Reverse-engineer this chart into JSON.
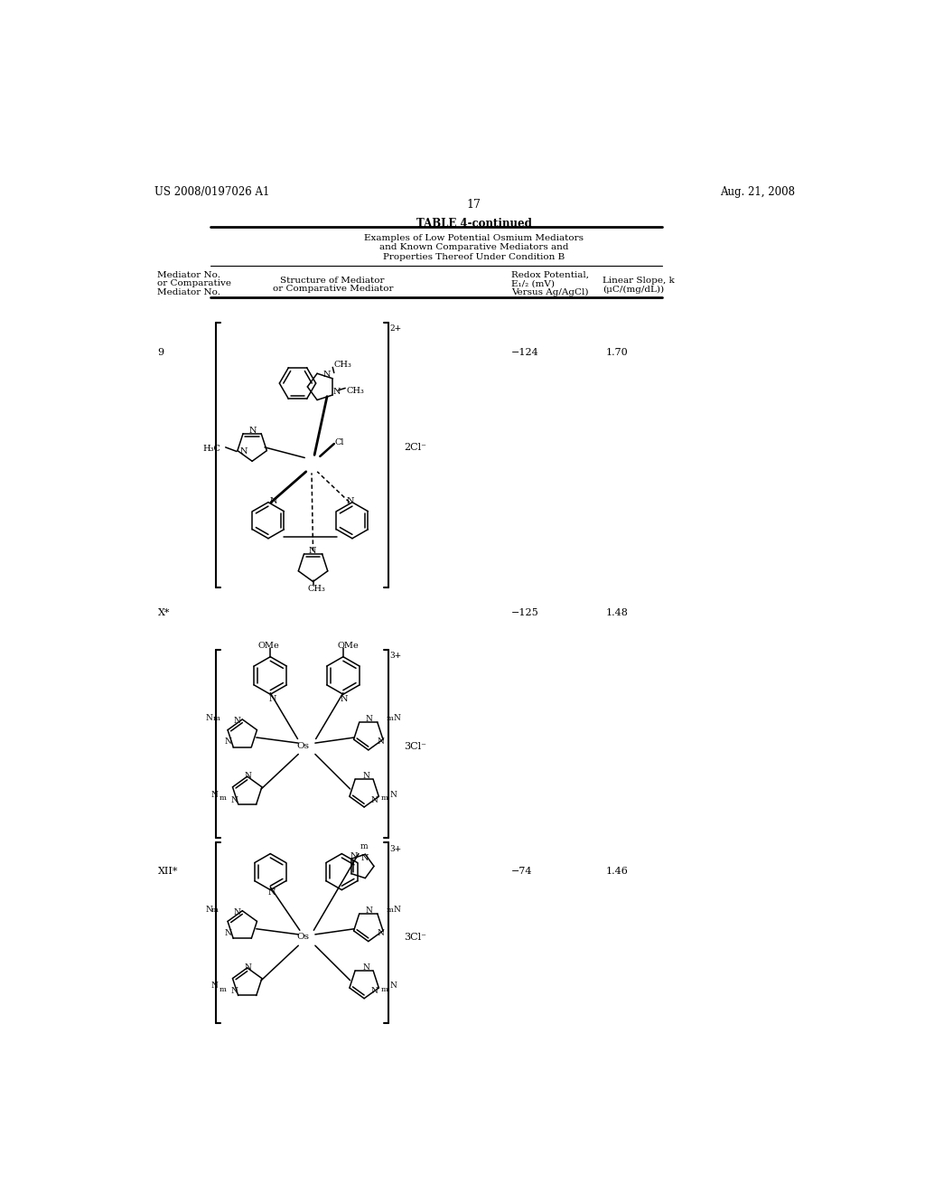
{
  "bg_color": "#ffffff",
  "page_width": 10.24,
  "page_height": 13.2,
  "header_left": "US 2008/0197026 A1",
  "header_right": "Aug. 21, 2008",
  "page_number": "17",
  "table_title": "TABLE 4-continued",
  "table_subtitle_lines": [
    "Examples of Low Potential Osmium Mediators",
    "and Known Comparative Mediators and",
    "Properties Thereof Under Condition B"
  ],
  "rows": [
    {
      "mediator": "9",
      "redox": "−124",
      "slope": "1.70",
      "charge": "2+",
      "counter_ion": "2Cl⁻"
    },
    {
      "mediator": "X*",
      "redox": "−125",
      "slope": "1.48",
      "charge": "3+",
      "counter_ion": "3Cl⁻"
    },
    {
      "mediator": "XII*",
      "redox": "−74",
      "slope": "1.46",
      "charge": "3+",
      "counter_ion": "3Cl⁻"
    }
  ]
}
